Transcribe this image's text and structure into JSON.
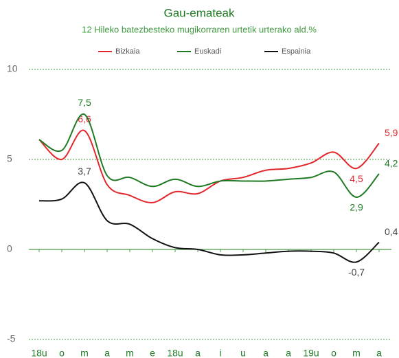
{
  "chart_data": {
    "type": "line",
    "title": "Gau-emateak",
    "subtitle": "12 Hileko batezbesteko mugikorraren urtetik urterako ald.%",
    "categories": [
      "18u",
      "o",
      "m",
      "a",
      "m",
      "e",
      "18u",
      "a",
      "i",
      "u",
      "a",
      "a",
      "19u",
      "o",
      "m",
      "a"
    ],
    "series": [
      {
        "name": "Bizkaia",
        "color": "#e3262b",
        "values": [
          6.1,
          5.0,
          6.6,
          3.6,
          3.0,
          2.6,
          3.2,
          3.1,
          3.8,
          4.0,
          4.4,
          4.5,
          4.8,
          5.4,
          4.5,
          5.9
        ],
        "value_labels": [
          null,
          null,
          "6,6",
          null,
          null,
          null,
          null,
          null,
          null,
          null,
          null,
          null,
          null,
          null,
          "4,5",
          "5,9"
        ]
      },
      {
        "name": "Euskadi",
        "color": "#1e7a22",
        "values": [
          6.1,
          5.5,
          7.5,
          4.1,
          4.0,
          3.5,
          3.9,
          3.5,
          3.8,
          3.8,
          3.8,
          3.9,
          4.0,
          4.3,
          2.9,
          4.2
        ],
        "value_labels": [
          null,
          null,
          "7,5",
          null,
          null,
          null,
          null,
          null,
          null,
          null,
          null,
          null,
          null,
          null,
          "2,9",
          "4,2"
        ]
      },
      {
        "name": "Espainia",
        "color": "#111111",
        "values": [
          2.7,
          2.8,
          3.7,
          1.6,
          1.4,
          0.6,
          0.1,
          0.0,
          -0.3,
          -0.3,
          -0.2,
          -0.1,
          -0.1,
          -0.2,
          -0.7,
          0.4
        ],
        "value_labels": [
          null,
          null,
          "3,7",
          null,
          null,
          null,
          null,
          null,
          null,
          null,
          null,
          null,
          null,
          null,
          "-0,7",
          "0,4"
        ]
      }
    ],
    "ylim": [
      -5,
      10
    ],
    "yticks": [
      -5,
      0,
      5,
      10
    ],
    "grid": true,
    "legend": "top"
  }
}
